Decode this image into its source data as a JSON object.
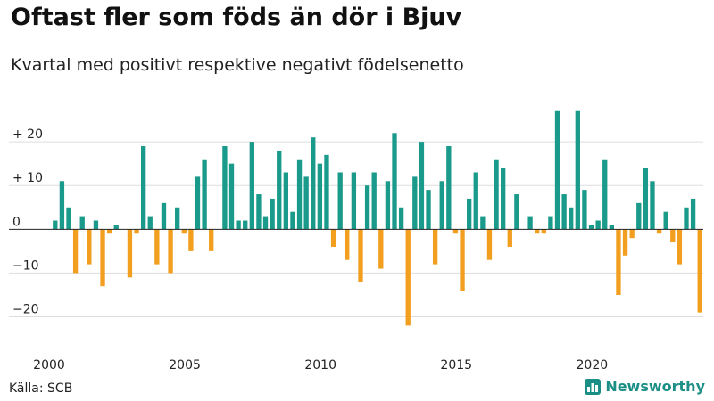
{
  "title": "Oftast fler som föds än dör i Bjuv",
  "subtitle": "Kvartal med positivt respektive negativt födelsenetto",
  "source": "Källa: SCB",
  "brand": "Newsworthy",
  "colors": {
    "positive": "#1a9a8a",
    "negative": "#f29e1f",
    "grid": "#dddddd",
    "axis": "#222222",
    "brand": "#1b8f86"
  },
  "chart_data": {
    "type": "bar",
    "start_year": 2000,
    "quarters_per_year": 4,
    "values": [
      2,
      11,
      5,
      -10,
      3,
      -8,
      2,
      -13,
      -1,
      1,
      0,
      -11,
      -1,
      19,
      3,
      -8,
      6,
      -10,
      5,
      -1,
      -5,
      12,
      16,
      -5,
      0,
      19,
      15,
      2,
      2,
      20,
      8,
      3,
      7,
      18,
      13,
      4,
      16,
      12,
      21,
      15,
      17,
      -4,
      13,
      -7,
      13,
      -12,
      10,
      13,
      -9,
      11,
      22,
      5,
      -22,
      12,
      20,
      9,
      -8,
      11,
      19,
      -1,
      -14,
      7,
      13,
      3,
      -7,
      16,
      14,
      -4,
      8,
      0,
      3,
      -1,
      -1,
      3,
      27,
      8,
      5,
      27,
      9,
      1,
      2,
      16,
      1,
      -15,
      -6,
      -2,
      6,
      14,
      11,
      -1,
      4,
      -3,
      -8,
      5,
      7,
      -19
    ],
    "ylim": [
      -26,
      30
    ],
    "yticks": [
      -20,
      -10,
      0,
      10,
      20
    ],
    "ytick_labels": [
      "−20",
      "−10",
      "0",
      "+ 10",
      "+ 20"
    ],
    "xticks": [
      2000,
      2005,
      2010,
      2015,
      2020
    ],
    "xtick_labels": [
      "2000",
      "2005",
      "2010",
      "2015",
      "2020"
    ],
    "grid": true
  }
}
